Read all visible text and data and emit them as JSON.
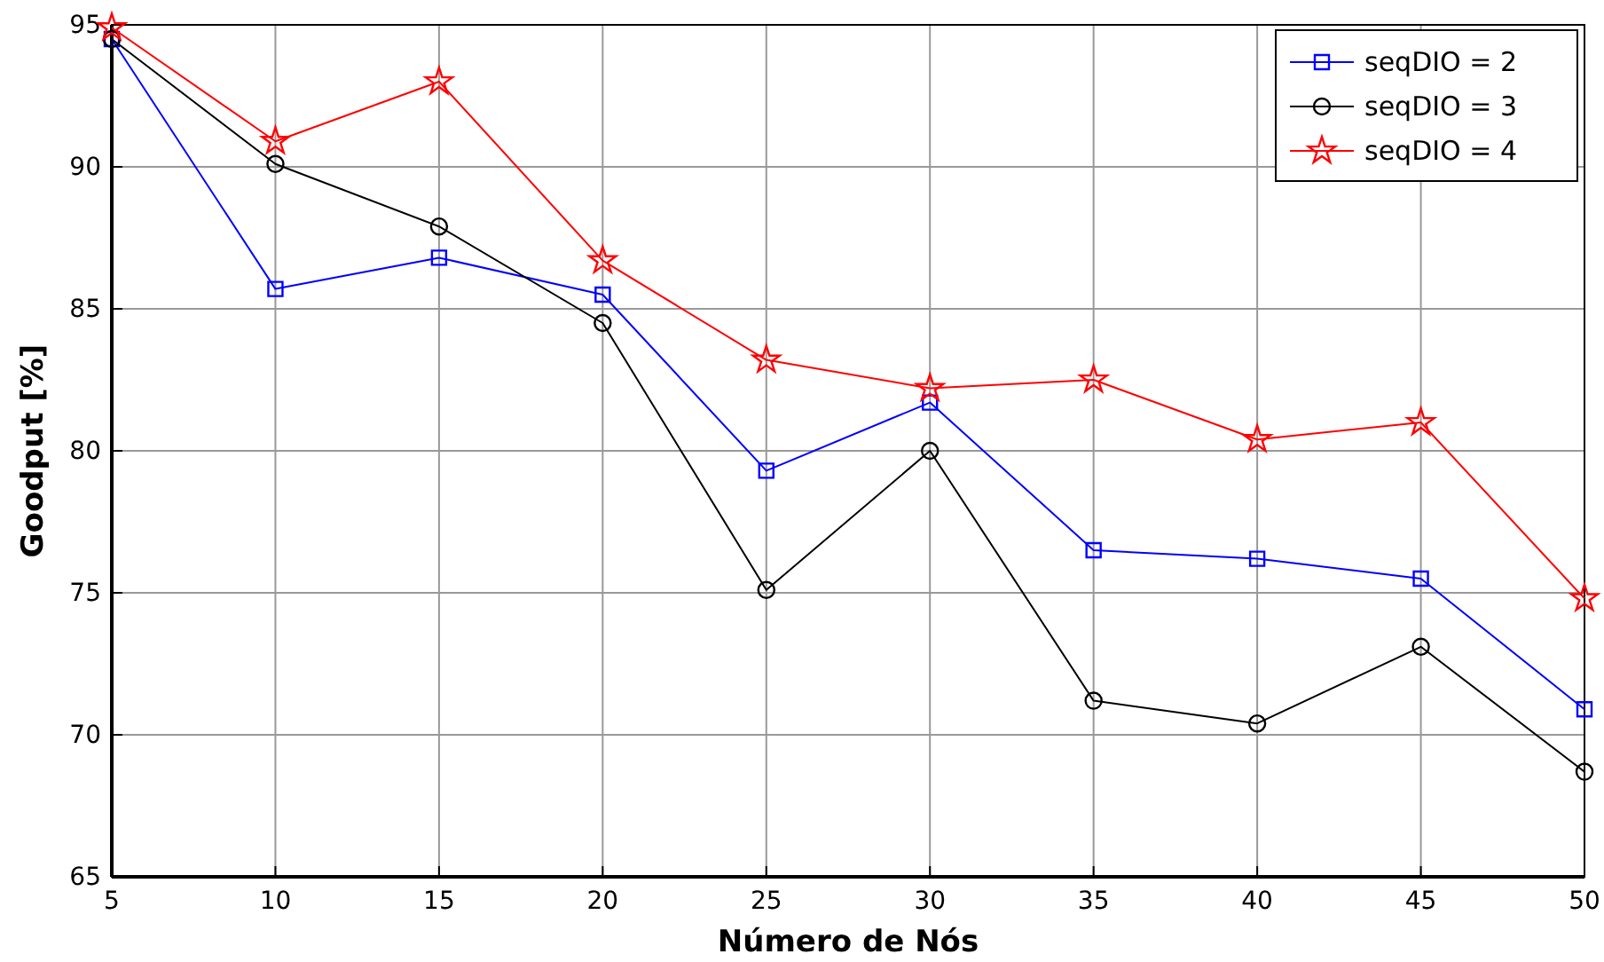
{
  "chart_data": {
    "type": "line",
    "xlabel": "Número de Nós",
    "ylabel": "Goodput [%]",
    "x": [
      5,
      10,
      15,
      20,
      25,
      30,
      35,
      40,
      45,
      50
    ],
    "series": [
      {
        "name": "seqDIO = 2",
        "color": "#0000ff",
        "marker": "square",
        "values": [
          94.5,
          85.7,
          86.8,
          85.5,
          79.3,
          81.7,
          76.5,
          76.2,
          75.5,
          70.9
        ]
      },
      {
        "name": "seqDIO = 3",
        "color": "#000000",
        "marker": "circle",
        "values": [
          94.5,
          90.1,
          87.9,
          84.5,
          75.1,
          80.0,
          71.2,
          70.4,
          73.1,
          68.7
        ]
      },
      {
        "name": "seqDIO = 4",
        "color": "#ff0000",
        "marker": "star",
        "values": [
          94.9,
          90.9,
          93.0,
          86.7,
          83.2,
          82.2,
          82.5,
          80.4,
          81.0,
          74.8
        ]
      }
    ],
    "xlim": [
      5,
      50
    ],
    "xticks": [
      5,
      10,
      15,
      20,
      25,
      30,
      35,
      40,
      45,
      50
    ],
    "ylim": [
      65,
      95
    ],
    "yticks": [
      65,
      70,
      75,
      80,
      85,
      90,
      95
    ],
    "grid": true,
    "legend": "top right",
    "line_style": "solid"
  }
}
